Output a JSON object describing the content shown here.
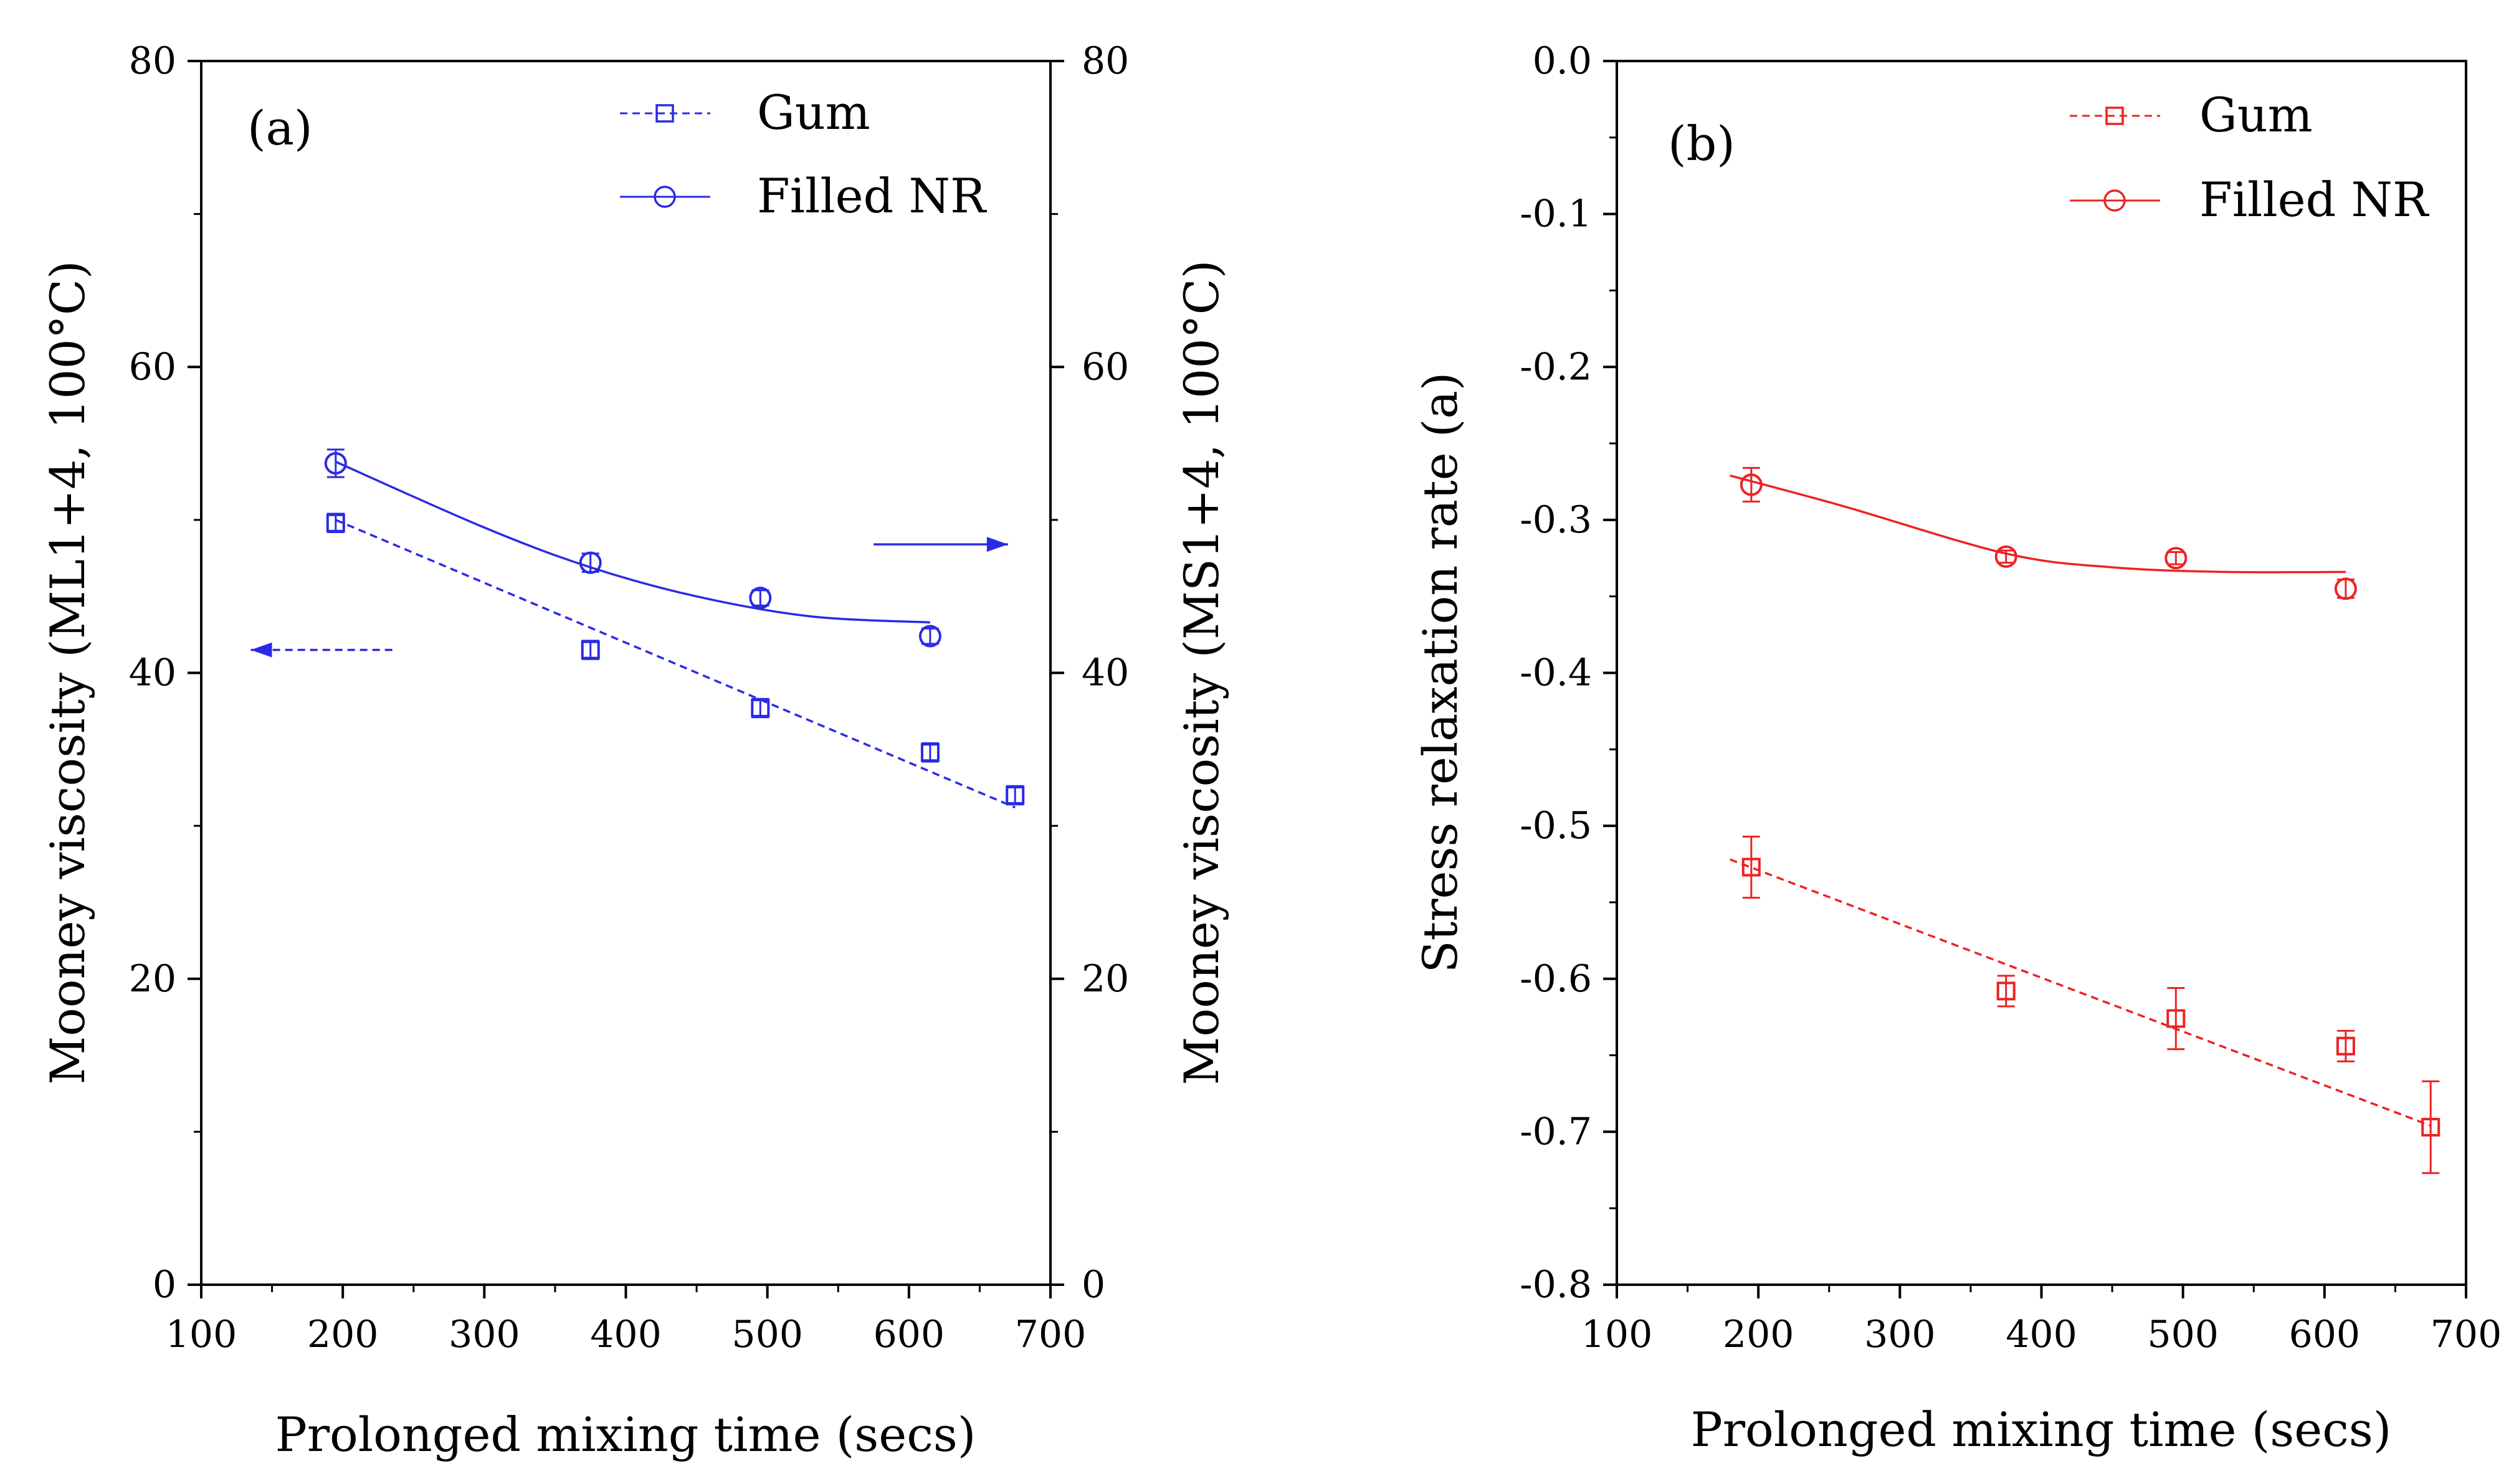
{
  "chart_data": [
    {
      "type": "line",
      "panel_label": "(a)",
      "xlabel": "Prolonged mixing time (secs)",
      "ylabel": "Mooney viscosity (ML1+4, 100°C)",
      "y2label": "Mooney viscosity (MS1+4, 100°C)",
      "xlim": [
        100,
        700
      ],
      "ylim": [
        0,
        80
      ],
      "y2lim": [
        0,
        80
      ],
      "xticks": [
        "100",
        "200",
        "300",
        "400",
        "500",
        "600",
        "700"
      ],
      "yticks": [
        "0",
        "20",
        "40",
        "60",
        "80"
      ],
      "y2ticks": [
        "0",
        "20",
        "40",
        "60",
        "80"
      ],
      "color": "#2a2ae6",
      "series": [
        {
          "name": "Gum",
          "marker": "square",
          "axis": "left",
          "line_style": "dashed",
          "x": [
            195,
            375,
            495,
            615,
            675
          ],
          "y": [
            49.8,
            41.5,
            37.7,
            34.8,
            32.0
          ],
          "err": [
            0.6,
            0.6,
            0.6,
            0.6,
            0.6
          ],
          "fit": {
            "kind": "linear",
            "x": [
              195,
              675
            ],
            "y": [
              50.0,
              31.2
            ]
          }
        },
        {
          "name": "Filled NR",
          "marker": "circle",
          "axis": "right",
          "line_style": "solid",
          "x": [
            195,
            375,
            495,
            615
          ],
          "y": [
            53.7,
            47.2,
            44.9,
            42.4
          ],
          "err": [
            0.9,
            0.6,
            0.5,
            0.5
          ],
          "fit": {
            "kind": "curve",
            "x": [
              195,
              300,
              375,
              450,
              530,
              615
            ],
            "y": [
              53.8,
              49.5,
              46.9,
              45.0,
              43.7,
              43.3
            ]
          }
        }
      ],
      "annotations": [
        {
          "kind": "arrow",
          "points_to": "left axis",
          "style": "dashed",
          "from": [
            235,
            41.5
          ],
          "to": [
            135,
            41.5
          ]
        },
        {
          "kind": "arrow",
          "points_to": "right axis",
          "style": "solid",
          "from": [
            575,
            48.4
          ],
          "to": [
            670,
            48.4
          ]
        }
      ]
    },
    {
      "type": "line",
      "panel_label": "(b)",
      "xlabel": "Prolonged mixing time (secs)",
      "ylabel": "Stress relaxation rate (a)",
      "xlim": [
        100,
        700
      ],
      "ylim": [
        -0.8,
        0.0
      ],
      "xticks": [
        "100",
        "200",
        "300",
        "400",
        "500",
        "600",
        "700"
      ],
      "yticks": [
        "-0.8",
        "-0.7",
        "-0.6",
        "-0.5",
        "-0.4",
        "-0.3",
        "-0.2",
        "-0.1",
        "0.0"
      ],
      "color": "#ee2222",
      "series": [
        {
          "name": "Gum",
          "marker": "square",
          "line_style": "dashed",
          "x": [
            195,
            375,
            495,
            615,
            675
          ],
          "y": [
            -0.527,
            -0.608,
            -0.626,
            -0.644,
            -0.697
          ],
          "err": [
            0.02,
            0.01,
            0.02,
            0.01,
            0.03
          ],
          "fit": {
            "kind": "linear",
            "x": [
              180,
              675
            ],
            "y": [
              -0.522,
              -0.696
            ]
          }
        },
        {
          "name": "Filled NR",
          "marker": "circle",
          "line_style": "solid",
          "x": [
            195,
            375,
            495,
            615
          ],
          "y": [
            -0.277,
            -0.324,
            -0.325,
            -0.345
          ],
          "err": [
            0.011,
            0.004,
            0.004,
            0.006
          ],
          "fit": {
            "kind": "curve",
            "x": [
              180,
              260,
              375,
              450,
              530,
              615
            ],
            "y": [
              -0.271,
              -0.291,
              -0.322,
              -0.331,
              -0.334,
              -0.334
            ]
          }
        }
      ]
    }
  ]
}
